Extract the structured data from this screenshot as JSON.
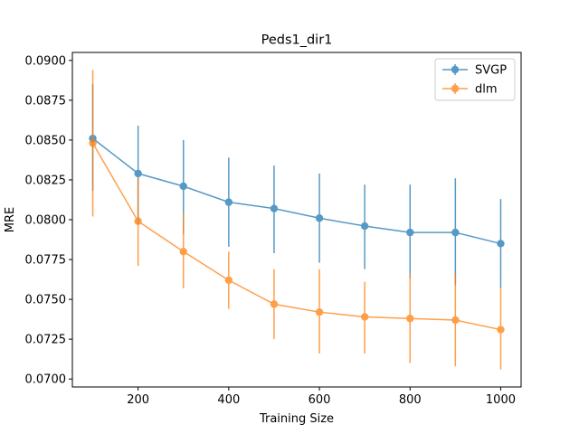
{
  "chart_data": {
    "type": "line",
    "title": "Peds1_dir1",
    "xlabel": "Training Size",
    "ylabel": "MRE",
    "xlim": [
      55,
      1045
    ],
    "ylim": [
      0.0695,
      0.0905
    ],
    "xticks": [
      200,
      400,
      600,
      800,
      1000
    ],
    "xtick_labels": [
      "200",
      "400",
      "600",
      "800",
      "1000"
    ],
    "yticks": [
      0.07,
      0.0725,
      0.075,
      0.0775,
      0.08,
      0.0825,
      0.085,
      0.0875,
      0.09
    ],
    "ytick_labels": [
      "0.0700",
      "0.0725",
      "0.0750",
      "0.0775",
      "0.0800",
      "0.0825",
      "0.0850",
      "0.0875",
      "0.0900"
    ],
    "grid": false,
    "legend_position": "top-right",
    "x": [
      100,
      200,
      300,
      400,
      500,
      600,
      700,
      800,
      900,
      1000
    ],
    "series": [
      {
        "name": "SVGP",
        "color": "#1f77b4",
        "values": [
          0.0851,
          0.0829,
          0.0821,
          0.0811,
          0.0807,
          0.0801,
          0.0796,
          0.0792,
          0.0792,
          0.0785
        ],
        "err_low": [
          0.0818,
          0.0797,
          0.0791,
          0.0783,
          0.0779,
          0.0773,
          0.0769,
          0.0763,
          0.0759,
          0.0757
        ],
        "err_high": [
          0.0885,
          0.0859,
          0.085,
          0.0839,
          0.0834,
          0.0829,
          0.0822,
          0.0822,
          0.0826,
          0.0813
        ]
      },
      {
        "name": "dlm",
        "color": "#ff7f0e",
        "values": [
          0.0848,
          0.0799,
          0.078,
          0.0762,
          0.0747,
          0.0742,
          0.0739,
          0.0738,
          0.0737,
          0.0731
        ],
        "err_low": [
          0.0802,
          0.0771,
          0.0757,
          0.0744,
          0.0725,
          0.0716,
          0.0716,
          0.071,
          0.0708,
          0.0706
        ],
        "err_high": [
          0.0894,
          0.0826,
          0.0804,
          0.078,
          0.0769,
          0.0769,
          0.0761,
          0.0766,
          0.0766,
          0.0757
        ]
      }
    ]
  }
}
